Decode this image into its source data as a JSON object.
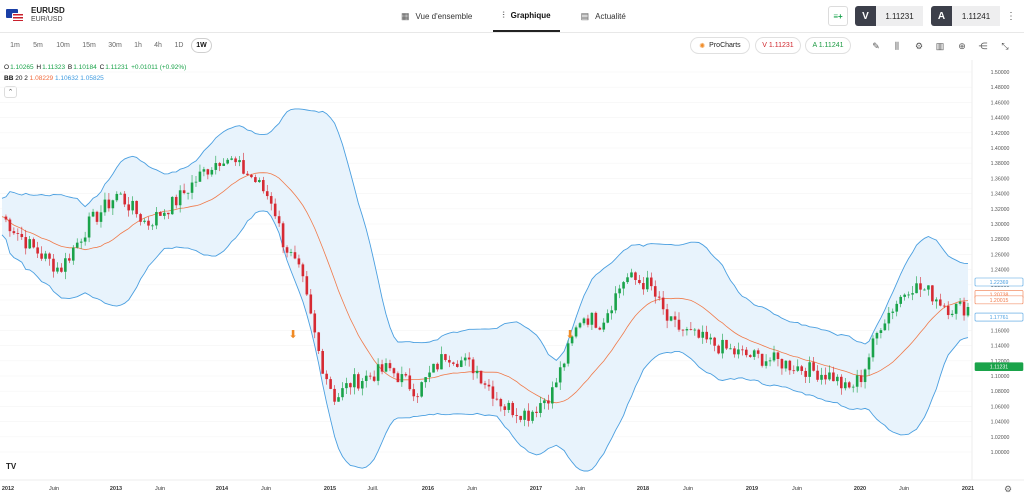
{
  "symbol": {
    "name": "EURUSD",
    "pair": "EUR/USD"
  },
  "tabs": [
    {
      "label": "Vue d'ensemble",
      "icon": "grid-icon"
    },
    {
      "label": "Graphique",
      "icon": "candles-icon"
    },
    {
      "label": "Actualité",
      "icon": "news-icon"
    }
  ],
  "trade": {
    "sell_label": "V",
    "sell_price": "1.11231",
    "buy_label": "A",
    "buy_price": "1.11241"
  },
  "timeframes": [
    "1m",
    "5m",
    "10m",
    "15m",
    "30m",
    "1h",
    "4h",
    "1D",
    "1W"
  ],
  "active_timeframe": "1W",
  "prochart_label": "ProCharts",
  "pill_sell": "V 1.11231",
  "pill_buy": "A 1.11241",
  "ohlc": {
    "o_label": "O",
    "o": "1.10265",
    "h_label": "H",
    "h": "1.11323",
    "b_label": "B",
    "b": "1.10184",
    "c_label": "C",
    "c": "1.11231",
    "change": "+0.01011 (+0.92%)"
  },
  "bb": {
    "label": "BB",
    "params": "20 2",
    "mid": "1.08229",
    "upper": "1.10632",
    "lower": "1.05825"
  },
  "chart_data": {
    "type": "candlestick",
    "indicator": "Bollinger Bands (20, 2)",
    "colors": {
      "up": "#1aa34a",
      "down": "#d62a33",
      "band": "#4a9fe0",
      "mid": "#f07a4a",
      "fill": "#e8f3fc"
    },
    "y_ticks": [
      "1.50000",
      "1.48000",
      "1.46000",
      "1.44000",
      "1.42000",
      "1.40000",
      "1.38000",
      "1.36000",
      "1.34000",
      "1.32000",
      "1.30000",
      "1.28000",
      "1.26000",
      "1.24000",
      "1.22000",
      "1.20000",
      "1.18000",
      "1.16000",
      "1.14000",
      "1.12000",
      "1.10000",
      "1.08000",
      "1.06000",
      "1.04000",
      "1.02000",
      "1.00000"
    ],
    "ylim": [
      1.0,
      1.5
    ],
    "x_ticks": [
      "2012",
      "Juin",
      "2013",
      "Juin",
      "2014",
      "Juin",
      "2015",
      "Juill.",
      "2016",
      "Juin",
      "2017",
      "Juin",
      "2018",
      "Juin",
      "2019",
      "Juin",
      "2020",
      "Juin",
      "2021"
    ],
    "price_tags": [
      {
        "value": "1.22369",
        "kind": "upper"
      },
      {
        "value": "1.20738",
        "kind": "price"
      },
      {
        "value": "1.20015",
        "kind": "mid"
      },
      {
        "value": "1.17761",
        "kind": "lower"
      },
      {
        "value": "1.11231",
        "kind": "last"
      }
    ],
    "series_path": [
      [
        0,
        1.31
      ],
      [
        0.03,
        1.27
      ],
      [
        0.06,
        1.24
      ],
      [
        0.09,
        1.3
      ],
      [
        0.12,
        1.34
      ],
      [
        0.15,
        1.3
      ],
      [
        0.18,
        1.33
      ],
      [
        0.21,
        1.37
      ],
      [
        0.23,
        1.39
      ],
      [
        0.26,
        1.36
      ],
      [
        0.28,
        1.33
      ],
      [
        0.29,
        1.28
      ],
      [
        0.31,
        1.23
      ],
      [
        0.33,
        1.12
      ],
      [
        0.345,
        1.07
      ],
      [
        0.36,
        1.09
      ],
      [
        0.4,
        1.11
      ],
      [
        0.43,
        1.08
      ],
      [
        0.46,
        1.13
      ],
      [
        0.49,
        1.11
      ],
      [
        0.52,
        1.06
      ],
      [
        0.545,
        1.05
      ],
      [
        0.57,
        1.08
      ],
      [
        0.6,
        1.18
      ],
      [
        0.62,
        1.17
      ],
      [
        0.645,
        1.23
      ],
      [
        0.67,
        1.22
      ],
      [
        0.69,
        1.17
      ],
      [
        0.72,
        1.15
      ],
      [
        0.76,
        1.13
      ],
      [
        0.8,
        1.12
      ],
      [
        0.83,
        1.11
      ],
      [
        0.86,
        1.1
      ],
      [
        0.875,
        1.08
      ],
      [
        0.89,
        1.1
      ],
      [
        0.91,
        1.17
      ],
      [
        0.94,
        1.22
      ],
      [
        0.96,
        1.21
      ],
      [
        0.98,
        1.19
      ]
    ]
  }
}
